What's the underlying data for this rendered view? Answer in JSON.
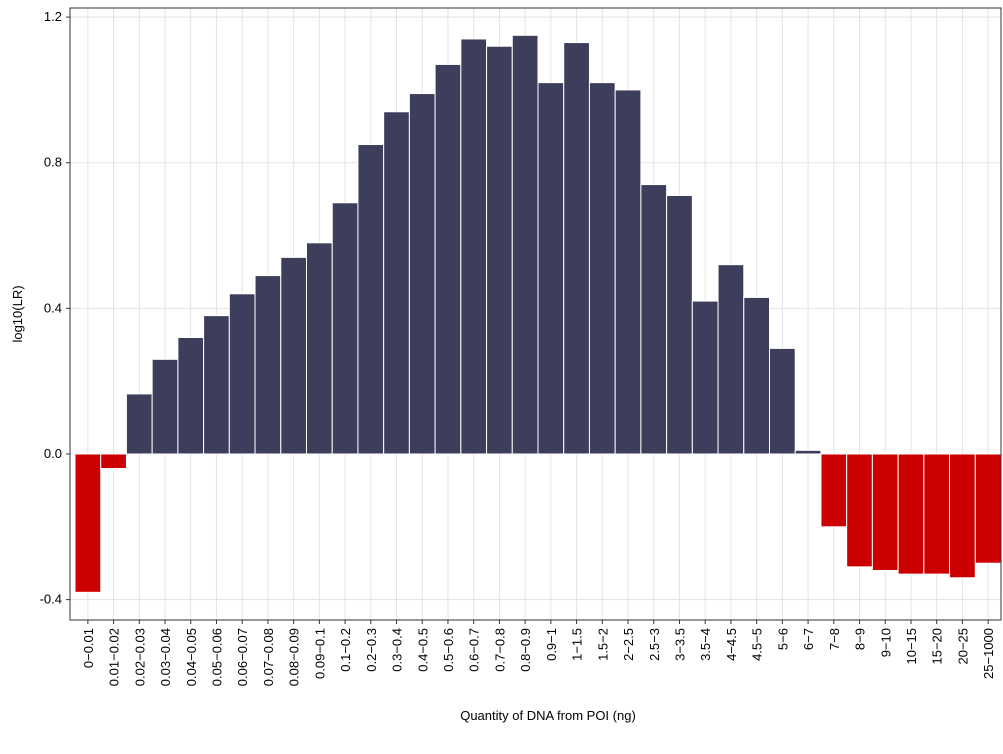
{
  "chart_data": {
    "type": "bar",
    "categories": [
      "0−0.01",
      "0.01−0.02",
      "0.02−0.03",
      "0.03−0.04",
      "0.04−0.05",
      "0.05−0.06",
      "0.06−0.07",
      "0.07−0.08",
      "0.08−0.09",
      "0.09−0.1",
      "0.1−0.2",
      "0.2−0.3",
      "0.3−0.4",
      "0.4−0.5",
      "0.5−0.6",
      "0.6−0.7",
      "0.7−0.8",
      "0.8−0.9",
      "0.9−1",
      "1−1.5",
      "1.5−2",
      "2−2.5",
      "2.5−3",
      "3−3.5",
      "3.5−4",
      "4−4.5",
      "4.5−5",
      "5−6",
      "6−7",
      "7−8",
      "8−9",
      "9−10",
      "10−15",
      "15−20",
      "20−25",
      "25−1000"
    ],
    "values": [
      -0.38,
      -0.04,
      0.165,
      0.26,
      0.32,
      0.38,
      0.44,
      0.49,
      0.54,
      0.58,
      0.69,
      0.85,
      0.94,
      0.99,
      1.07,
      1.14,
      1.12,
      1.15,
      1.02,
      1.13,
      1.02,
      1.0,
      0.74,
      0.71,
      0.42,
      0.52,
      0.43,
      0.29,
      0.01,
      -0.2,
      -0.31,
      -0.32,
      -0.33,
      -0.33,
      -0.34,
      -0.3
    ],
    "positive_color": "#3d3d5c",
    "negative_color": "#cc0000",
    "xlabel": "Quantity of DNA from POI (ng)",
    "ylabel": "log10(LR)",
    "ylim": [
      -0.456,
      1.225
    ],
    "yticks": [
      -0.4,
      {
        "value": 0,
        "label": "0.0"
      },
      0.4,
      0.8,
      1.2
    ],
    "grid": true
  }
}
